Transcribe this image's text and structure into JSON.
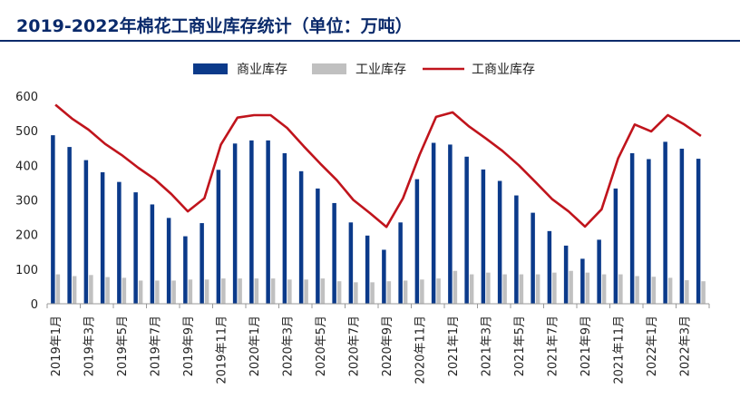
{
  "title": "2019-2022年棉花工商业库存统计（单位：万吨）",
  "chart_data": {
    "type": "bar",
    "x": [
      "2019年1月",
      "2019年2月",
      "2019年3月",
      "2019年4月",
      "2019年5月",
      "2019年6月",
      "2019年7月",
      "2019年8月",
      "2019年9月",
      "2019年10月",
      "2019年11月",
      "2019年12月",
      "2020年1月",
      "2020年2月",
      "2020年3月",
      "2020年4月",
      "2020年5月",
      "2020年6月",
      "2020年7月",
      "2020年8月",
      "2020年9月",
      "2020年10月",
      "2020年11月",
      "2020年12月",
      "2021年1月",
      "2021年2月",
      "2021年3月",
      "2021年4月",
      "2021年5月",
      "2021年6月",
      "2021年7月",
      "2021年8月",
      "2021年9月",
      "2021年10月",
      "2021年11月",
      "2021年12月",
      "2022年1月",
      "2022年2月",
      "2022年3月",
      "2022年4月"
    ],
    "x_tick_labels": [
      "2019年1月",
      "2019年3月",
      "2019年5月",
      "2019年7月",
      "2019年9月",
      "2019年11月",
      "2020年1月",
      "2020年3月",
      "2020年5月",
      "2020年7月",
      "2020年9月",
      "2020年11月",
      "2021年1月",
      "2021年3月",
      "2021年5月",
      "2021年7月",
      "2021年9月",
      "2021年11月",
      "2022年1月",
      "2022年3月"
    ],
    "ylim": [
      0,
      600
    ],
    "yticks": [
      "0",
      "100",
      "200",
      "300",
      "400",
      "500",
      "600"
    ],
    "legend_position": "top-center",
    "series": [
      {
        "name": "商业库存",
        "kind": "bar",
        "color": "#0b3a8a",
        "values": [
          487,
          453,
          415,
          380,
          352,
          322,
          287,
          248,
          195,
          233,
          387,
          463,
          472,
          472,
          435,
          383,
          333,
          291,
          235,
          197,
          156,
          235,
          360,
          465,
          460,
          425,
          388,
          355,
          313,
          263,
          210,
          168,
          130,
          185,
          333,
          435,
          418,
          468,
          448,
          419
        ]
      },
      {
        "name": "工业库存",
        "kind": "bar",
        "color": "#c0c0c0",
        "values": [
          85,
          80,
          83,
          77,
          75,
          67,
          67,
          67,
          70,
          70,
          73,
          73,
          73,
          73,
          70,
          70,
          73,
          65,
          62,
          62,
          65,
          67,
          70,
          73,
          95,
          85,
          90,
          85,
          85,
          85,
          90,
          95,
          90,
          85,
          85,
          80,
          78,
          75,
          68,
          65
        ]
      },
      {
        "name": "工商业库存",
        "kind": "line",
        "color": "#c0141c",
        "values": [
          575,
          535,
          503,
          462,
          430,
          393,
          360,
          317,
          267,
          305,
          460,
          538,
          545,
          545,
          508,
          455,
          405,
          357,
          300,
          262,
          222,
          305,
          430,
          540,
          553,
          512,
          478,
          442,
          400,
          352,
          303,
          267,
          223,
          273,
          420,
          518,
          498,
          545,
          518,
          485
        ]
      }
    ]
  }
}
